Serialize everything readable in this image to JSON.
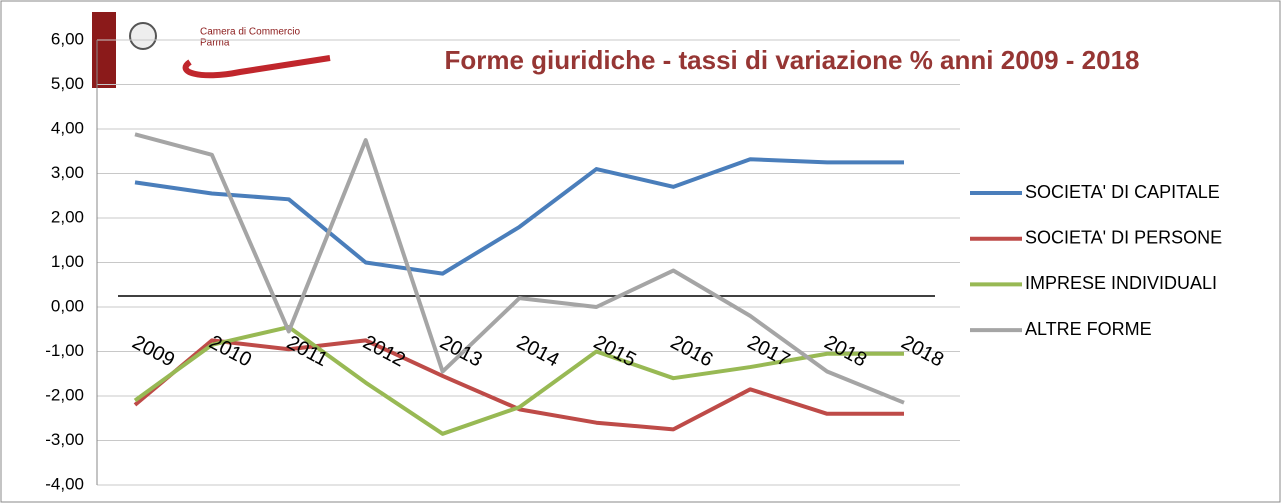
{
  "logo": {
    "line1": "Camera di Commercio",
    "line2": "Parma"
  },
  "chart_data": {
    "type": "line",
    "title": "Forme giuridiche  -  tassi di variazione % anni 2009 - 2018",
    "categories": [
      "2009",
      "2010",
      "2011",
      "2012",
      "2013",
      "2014",
      "2015",
      "2016",
      "2017",
      "2018",
      "2018"
    ],
    "series": [
      {
        "name": "SOCIETA' DI CAPITALE",
        "color": "#4a7ebb",
        "values": [
          2.8,
          2.55,
          2.42,
          1.0,
          0.75,
          1.8,
          3.1,
          2.7,
          3.32,
          3.25,
          3.25
        ]
      },
      {
        "name": "SOCIETA' DI PERSONE",
        "color": "#be4b48",
        "values": [
          -2.2,
          -0.75,
          -0.95,
          -0.75,
          -1.55,
          -2.3,
          -2.6,
          -2.75,
          -1.85,
          -2.4,
          -2.4
        ]
      },
      {
        "name": "IMPRESE INDIVIDUALI",
        "color": "#98b954",
        "values": [
          -2.1,
          -0.85,
          -0.45,
          -1.7,
          -2.85,
          -2.25,
          -1.0,
          -1.6,
          -1.35,
          -1.05,
          -1.05
        ]
      },
      {
        "name": "ALTRE FORME",
        "color": "#a5a5a5",
        "values": [
          3.88,
          3.42,
          -0.55,
          3.75,
          -1.45,
          0.2,
          0.0,
          0.82,
          -0.2,
          -1.45,
          -2.15
        ]
      }
    ],
    "ylim": [
      -4,
      6
    ],
    "yticks": [
      {
        "value": -4,
        "label": "-4,00"
      },
      {
        "value": -3,
        "label": "-3,00"
      },
      {
        "value": -2,
        "label": "-2,00"
      },
      {
        "value": -1,
        "label": "-1,00"
      },
      {
        "value": 0,
        "label": "0,00"
      },
      {
        "value": 1,
        "label": "1,00"
      },
      {
        "value": 2,
        "label": "2,00"
      },
      {
        "value": 3,
        "label": "3,00"
      },
      {
        "value": 4,
        "label": "4,00"
      },
      {
        "value": 5,
        "label": "5,00"
      },
      {
        "value": 6,
        "label": "6,00"
      }
    ],
    "grid": true,
    "legend": "right"
  }
}
